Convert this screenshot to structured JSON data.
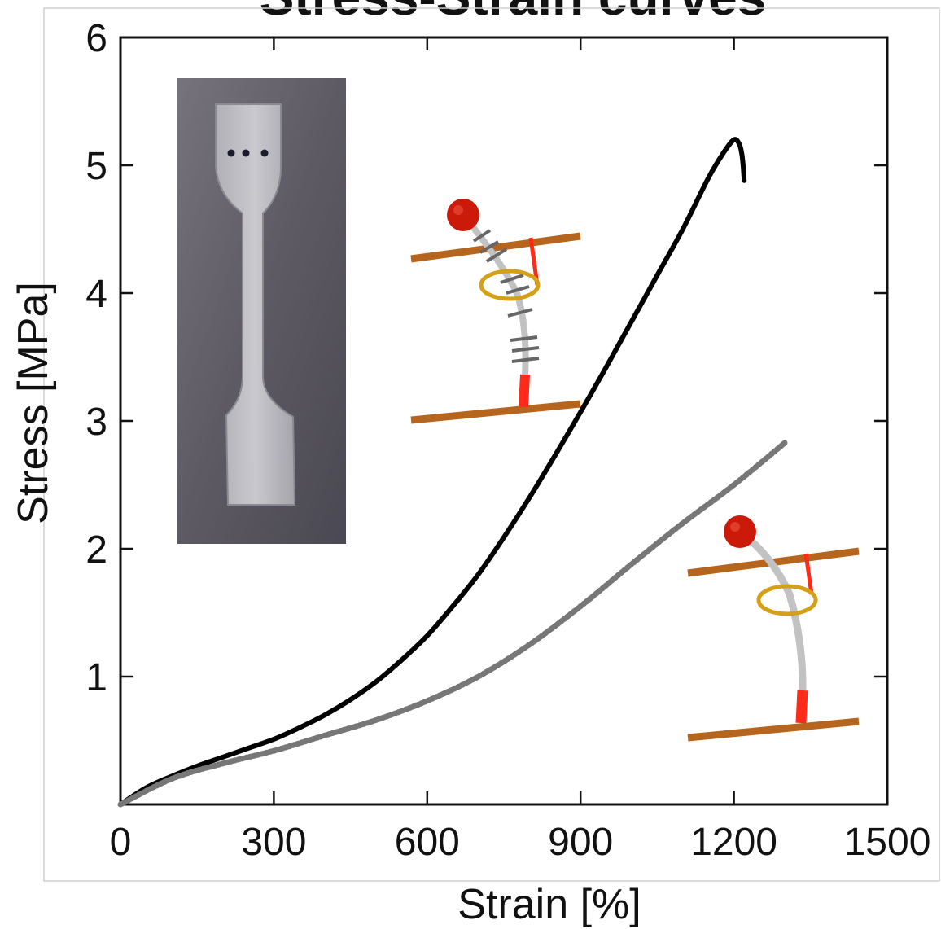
{
  "chart_data": {
    "type": "line",
    "title": "Stress-Strain curves",
    "xlabel": "Strain [%]",
    "ylabel": "Stress [MPa]",
    "xlim": [
      0,
      1500
    ],
    "ylim": [
      0,
      6
    ],
    "xticks": [
      "0",
      "300",
      "600",
      "900",
      "1200",
      "1500"
    ],
    "yticks": [
      "1",
      "2",
      "3",
      "4",
      "5",
      "6"
    ],
    "grid": false,
    "series": [
      {
        "style": "solid",
        "color": "#000000",
        "x": [
          0,
          50,
          100,
          150,
          200,
          250,
          300,
          350,
          400,
          450,
          500,
          550,
          600,
          650,
          700,
          750,
          800,
          850,
          900,
          950,
          1000,
          1050,
          1100,
          1150,
          1180,
          1200,
          1210,
          1215,
          1218,
          1220
        ],
        "y": [
          0,
          0.13,
          0.22,
          0.3,
          0.37,
          0.44,
          0.51,
          0.6,
          0.7,
          0.82,
          0.96,
          1.13,
          1.32,
          1.55,
          1.8,
          2.09,
          2.4,
          2.73,
          3.07,
          3.42,
          3.78,
          4.14,
          4.5,
          4.9,
          5.1,
          5.2,
          5.17,
          5.1,
          5.0,
          4.88
        ]
      },
      {
        "style": "dotted",
        "color": "#777777",
        "x": [
          0,
          100,
          200,
          300,
          400,
          500,
          600,
          700,
          800,
          900,
          1000,
          1100,
          1200,
          1300
        ],
        "y": [
          0,
          0.2,
          0.32,
          0.42,
          0.54,
          0.66,
          0.81,
          1.0,
          1.25,
          1.55,
          1.88,
          2.2,
          2.5,
          2.83
        ]
      }
    ]
  },
  "insets": {
    "photo": "dumbbell-specimen-photo",
    "diagram_top": "crosslinked-polymer-chain-diagram",
    "diagram_bottom": "uncrosslinked-polymer-chain-diagram"
  }
}
